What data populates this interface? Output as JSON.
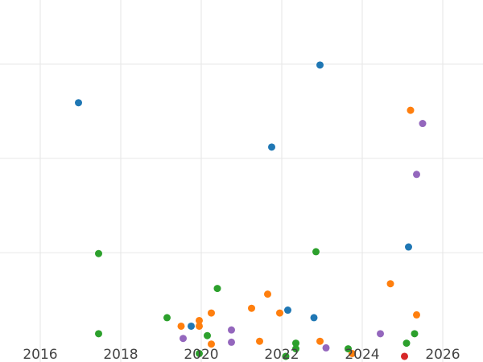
{
  "chart_data": {
    "type": "scatter",
    "title": "",
    "xlabel": "",
    "ylabel": "",
    "xlim": [
      2015.0,
      2027.0
    ],
    "ylim": [
      -1.6,
      36.8
    ],
    "x_ticks": [
      2016,
      2018,
      2020,
      2022,
      2024,
      2026
    ],
    "x_tick_labels": [
      "2016",
      "2018",
      "2020",
      "2022",
      "2024",
      "2026"
    ],
    "y_gridlines": [
      10,
      20,
      30
    ],
    "y_tick_labels_visible": false,
    "grid": true,
    "legend": "none",
    "series": [
      {
        "color": "#1f77b4",
        "points": [
          {
            "x": 2016.95,
            "y": 25.9
          },
          {
            "x": 2022.95,
            "y": 29.9
          },
          {
            "x": 2021.75,
            "y": 21.2
          },
          {
            "x": 2025.15,
            "y": 10.6
          },
          {
            "x": 2022.15,
            "y": 3.9
          },
          {
            "x": 2022.8,
            "y": 3.1
          },
          {
            "x": 2019.75,
            "y": 2.2
          }
        ]
      },
      {
        "color": "#ff7f0e",
        "points": [
          {
            "x": 2025.2,
            "y": 25.1
          },
          {
            "x": 2024.7,
            "y": 6.7
          },
          {
            "x": 2021.65,
            "y": 5.6
          },
          {
            "x": 2021.25,
            "y": 4.1
          },
          {
            "x": 2021.95,
            "y": 3.6
          },
          {
            "x": 2025.35,
            "y": 3.4
          },
          {
            "x": 2020.25,
            "y": 3.6
          },
          {
            "x": 2019.95,
            "y": 2.8
          },
          {
            "x": 2019.5,
            "y": 2.2
          },
          {
            "x": 2019.95,
            "y": 2.2
          },
          {
            "x": 2020.25,
            "y": 0.3
          },
          {
            "x": 2021.45,
            "y": 0.6
          },
          {
            "x": 2022.95,
            "y": 0.6
          },
          {
            "x": 2023.75,
            "y": -0.7
          }
        ]
      },
      {
        "color": "#2ca02c",
        "points": [
          {
            "x": 2017.45,
            "y": 9.9
          },
          {
            "x": 2022.85,
            "y": 10.1
          },
          {
            "x": 2020.4,
            "y": 6.2
          },
          {
            "x": 2019.15,
            "y": 3.1
          },
          {
            "x": 2017.45,
            "y": 1.4
          },
          {
            "x": 2020.15,
            "y": 1.2
          },
          {
            "x": 2022.35,
            "y": 0.4
          },
          {
            "x": 2025.3,
            "y": 1.4
          },
          {
            "x": 2025.1,
            "y": 0.4
          },
          {
            "x": 2022.35,
            "y": -0.2
          },
          {
            "x": 2023.65,
            "y": -0.2
          },
          {
            "x": 2019.95,
            "y": -0.7
          },
          {
            "x": 2022.1,
            "y": -1.0
          }
        ]
      },
      {
        "color": "#d62728",
        "points": [
          {
            "x": 2025.05,
            "y": -1.0
          }
        ]
      },
      {
        "color": "#9467bd",
        "points": [
          {
            "x": 2025.5,
            "y": 23.7
          },
          {
            "x": 2025.35,
            "y": 18.3
          },
          {
            "x": 2020.75,
            "y": 1.8
          },
          {
            "x": 2024.45,
            "y": 1.4
          },
          {
            "x": 2019.55,
            "y": 0.9
          },
          {
            "x": 2020.75,
            "y": 0.5
          },
          {
            "x": 2023.1,
            "y": -0.1
          }
        ]
      }
    ]
  }
}
